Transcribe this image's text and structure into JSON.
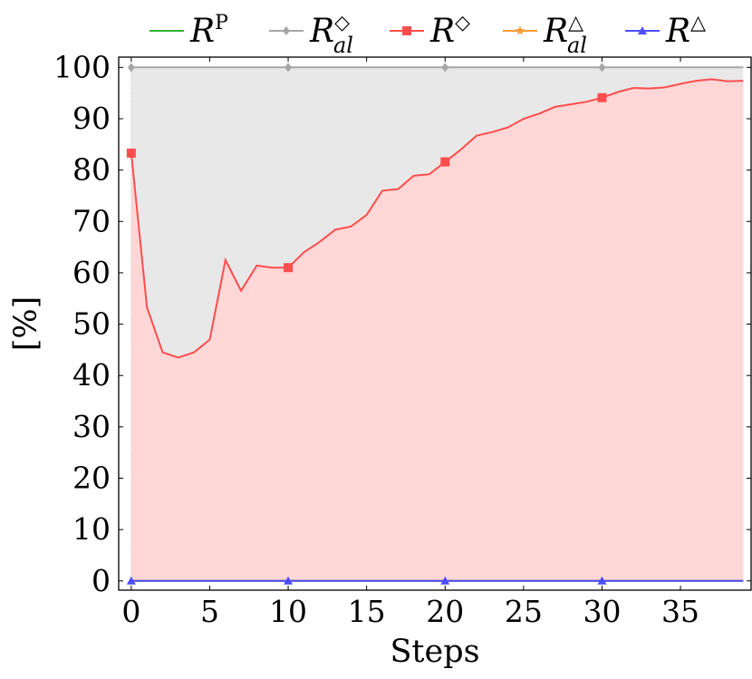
{
  "chart_data": {
    "type": "area",
    "xlabel": "Steps",
    "ylabel": "[%]",
    "xlim": [
      -0.8,
      39.5
    ],
    "ylim": [
      -1.8,
      102
    ],
    "x_ticks": [
      0,
      5,
      10,
      15,
      20,
      25,
      30,
      35
    ],
    "y_ticks": [
      0,
      10,
      20,
      30,
      40,
      50,
      60,
      70,
      80,
      90,
      100
    ],
    "legend_position": "top",
    "series": [
      {
        "name": "RP",
        "label_base": "R",
        "label_sup": "P",
        "label_sub": "",
        "color": "#33b233",
        "marker": "none",
        "fill": false,
        "x": [
          0,
          39
        ],
        "values": [
          0,
          0
        ]
      },
      {
        "name": "R◇al",
        "label_base": "R",
        "label_sup": "◇",
        "label_sub": "al",
        "color": "#a6a6a6",
        "marker": "diamond",
        "fill": true,
        "fill_color": "#e8e8e8",
        "x": [
          0,
          39
        ],
        "values": [
          100,
          100
        ],
        "mark_x": [
          0,
          10,
          20,
          30
        ]
      },
      {
        "name": "R◇",
        "label_base": "R",
        "label_sup": "◇",
        "label_sub": "",
        "color": "#ff4d4d",
        "marker": "square",
        "fill": true,
        "fill_color": "#ffd7d7",
        "x": [
          0,
          1,
          2,
          3,
          4,
          5,
          6,
          7,
          8,
          9,
          10,
          11,
          12,
          13,
          14,
          15,
          16,
          17,
          18,
          19,
          20,
          21,
          22,
          23,
          24,
          25,
          26,
          27,
          28,
          29,
          30,
          31,
          32,
          33,
          34,
          35,
          36,
          37,
          38,
          39
        ],
        "values": [
          83.3,
          53.3,
          44.5,
          43.5,
          44.5,
          47.0,
          62.5,
          56.5,
          61.4,
          61.0,
          61.0,
          64.0,
          66.0,
          68.4,
          69.0,
          71.3,
          76.0,
          76.3,
          78.9,
          79.2,
          81.6,
          84.0,
          86.7,
          87.4,
          88.3,
          90.0,
          91.0,
          92.3,
          92.8,
          93.3,
          94.1,
          95.2,
          96.0,
          95.9,
          96.1,
          96.8,
          97.4,
          97.7,
          97.3,
          97.4
        ],
        "mark_x": [
          0,
          10,
          20,
          30
        ]
      },
      {
        "name": "R△al",
        "label_base": "R",
        "label_sup": "△",
        "label_sub": "al",
        "color": "#ff9933",
        "marker": "star",
        "fill": false,
        "x": [
          0,
          39
        ],
        "values": [
          0,
          0
        ]
      },
      {
        "name": "R△",
        "label_base": "R",
        "label_sup": "△",
        "label_sub": "",
        "color": "#4d4dff",
        "marker": "triangle",
        "fill": false,
        "x": [
          0,
          39
        ],
        "values": [
          0,
          0
        ],
        "mark_x": [
          0,
          10,
          20,
          30
        ]
      }
    ]
  }
}
